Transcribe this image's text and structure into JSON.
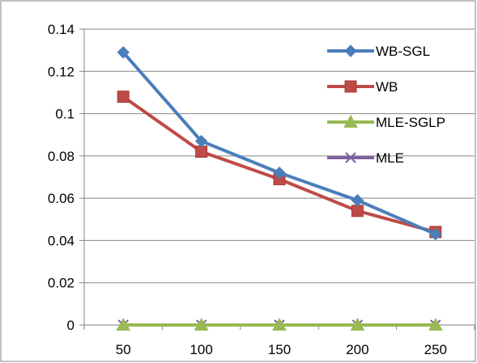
{
  "chart_data": {
    "type": "line",
    "categories": [
      "50",
      "100",
      "150",
      "200",
      "250"
    ],
    "ylim": [
      0,
      0.14
    ],
    "yticks": [
      "0.14",
      "0.12",
      "0.1",
      "0.08",
      "0.06",
      "0.04",
      "0.02",
      "0"
    ],
    "ytick_values": [
      0.14,
      0.12,
      0.1,
      0.08,
      0.06,
      0.04,
      0.02,
      0
    ],
    "grid": "horizontal major",
    "legend_position": "top-right",
    "title": "",
    "xlabel": "",
    "ylabel": "",
    "series": [
      {
        "name": "WB-SGL",
        "values": [
          0.129,
          0.087,
          0.072,
          0.059,
          0.043
        ],
        "color": "#4A7EBB",
        "marker": "diamond"
      },
      {
        "name": "WB",
        "values": [
          0.108,
          0.082,
          0.069,
          0.054,
          0.044
        ],
        "color": "#BE4B48",
        "marker": "square"
      },
      {
        "name": "MLE-SGLP",
        "values": [
          0,
          0,
          0,
          0,
          0
        ],
        "color": "#98B954",
        "marker": "triangle"
      },
      {
        "name": "MLE",
        "values": [
          0,
          0,
          0,
          0,
          0
        ],
        "color": "#7D60A0",
        "marker": "x"
      }
    ]
  }
}
